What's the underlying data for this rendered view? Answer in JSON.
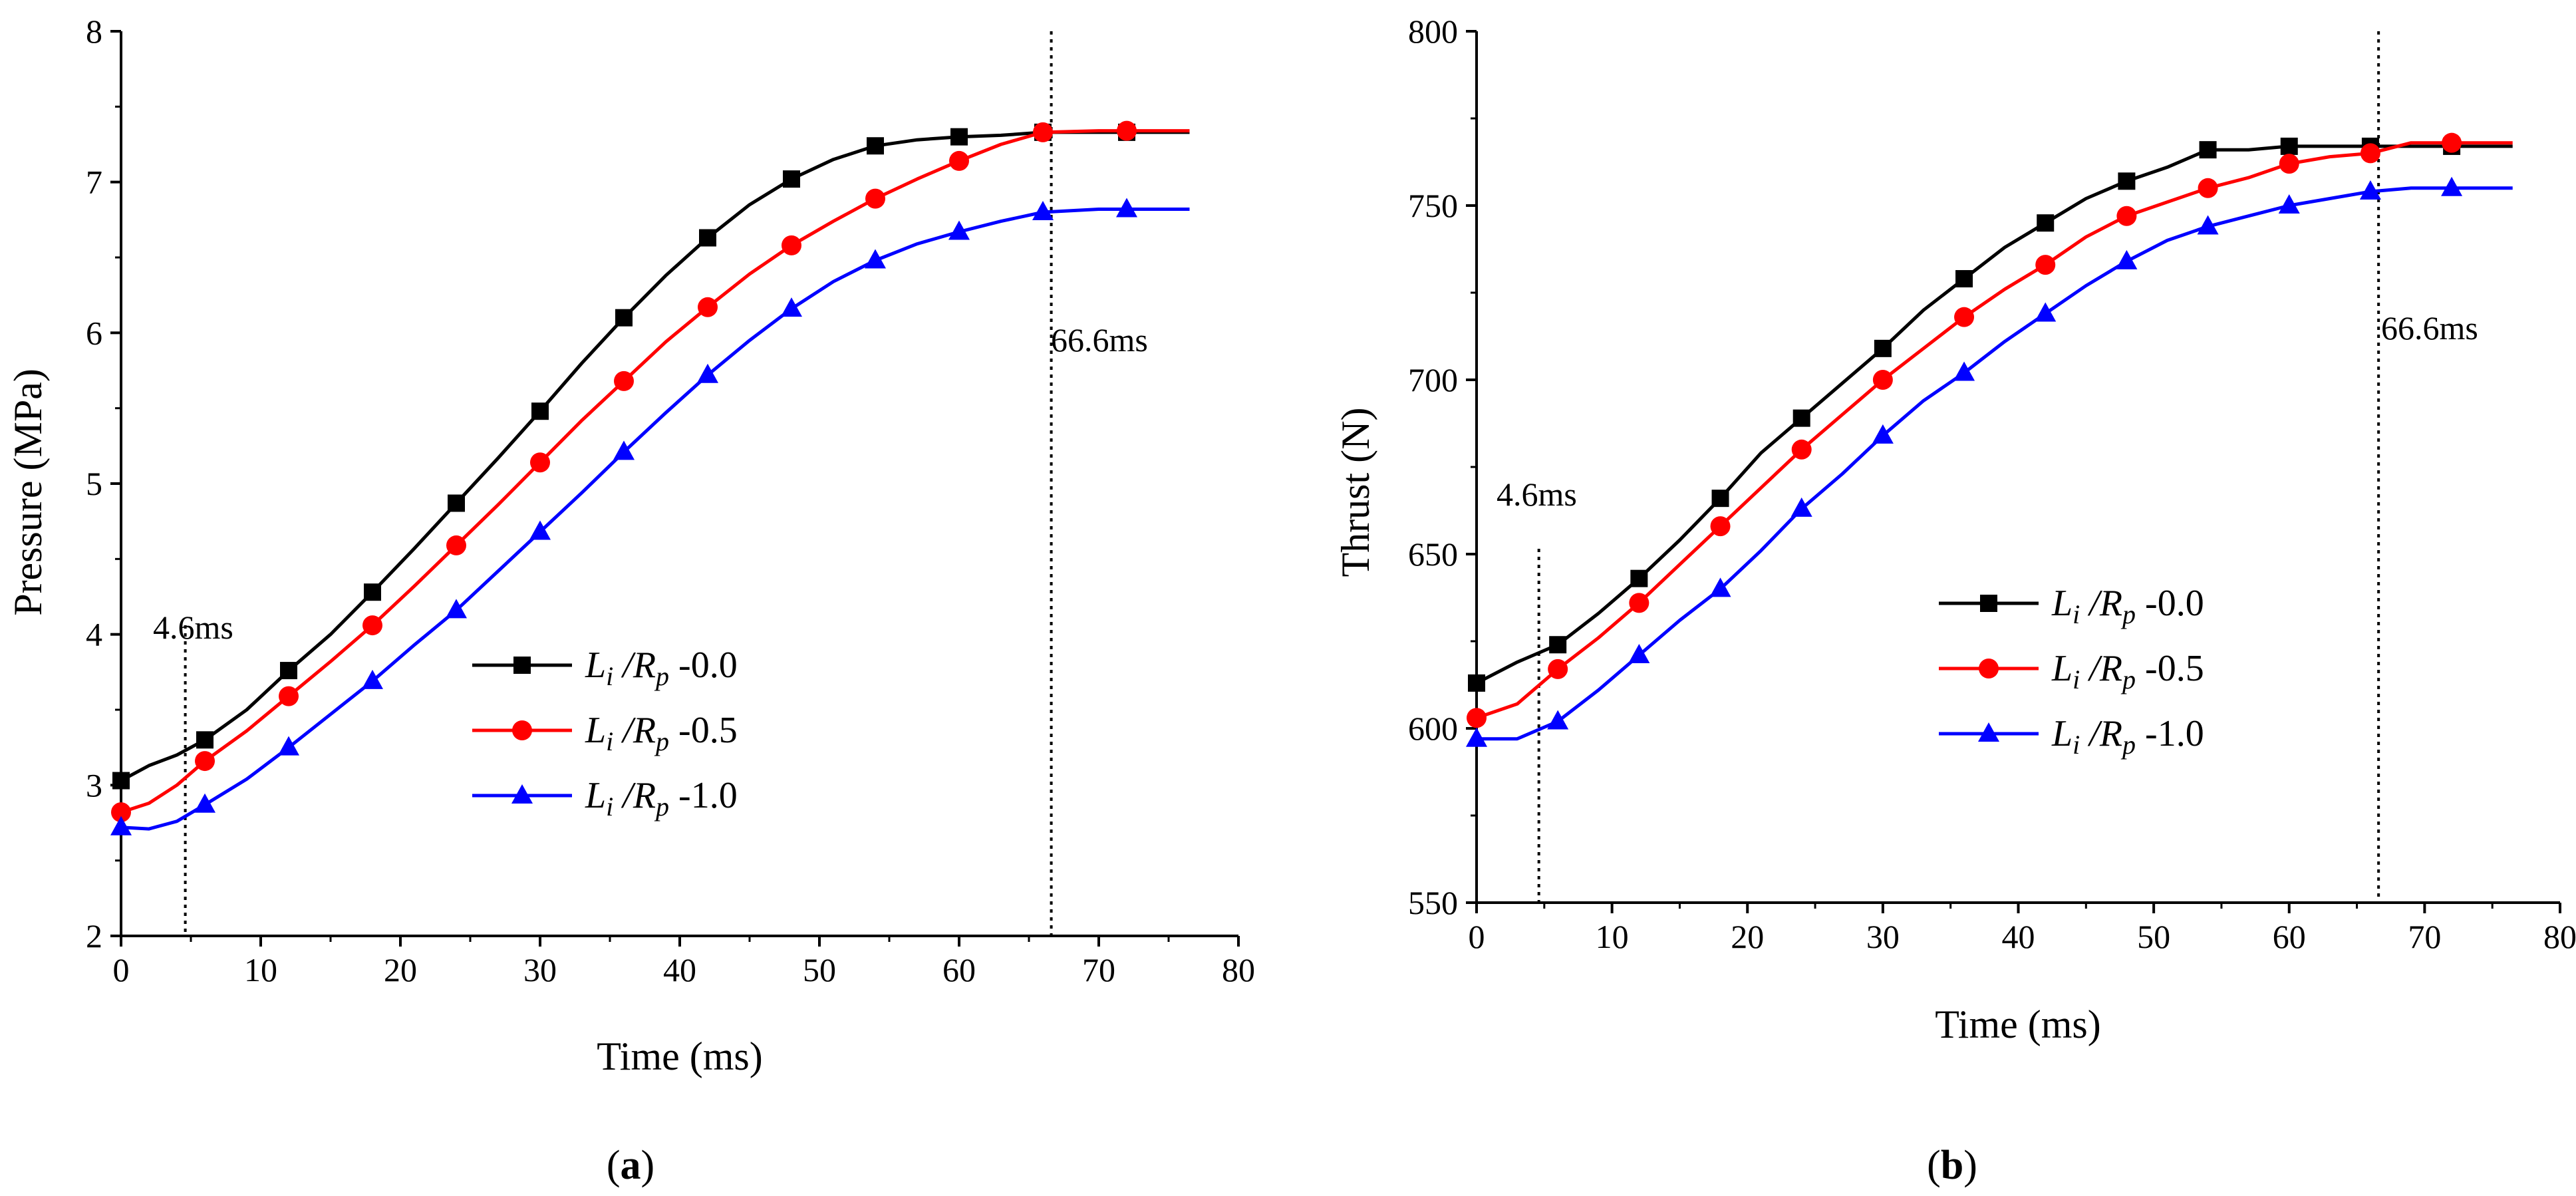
{
  "figure": {
    "panels": [
      {
        "panel_label": "a",
        "ylabel": "Pressure (MPa)",
        "xlabel": "Time (ms)"
      },
      {
        "panel_label": "b",
        "ylabel": "Thrust (N)",
        "xlabel": "Time (ms)"
      }
    ]
  },
  "chart_data": [
    {
      "type": "line",
      "title": "",
      "xlabel": "Time (ms)",
      "ylabel": "Pressure (MPa)",
      "xlim": [
        0,
        80
      ],
      "ylim": [
        2,
        8
      ],
      "xticks": [
        0,
        10,
        20,
        30,
        40,
        50,
        60,
        70,
        80
      ],
      "yticks": [
        2,
        3,
        4,
        5,
        6,
        7,
        8
      ],
      "grid": false,
      "legend_position": "lower-right-middle",
      "annotations": [
        {
          "label": "4.6ms",
          "x": 4.6
        },
        {
          "label": "66.6ms",
          "x": 66.6
        }
      ],
      "series": [
        {
          "name": "L_i / R_p -0.0",
          "legend_prefix": "L",
          "legend_sub1": "i",
          "legend_mid": " /R",
          "legend_sub2": "p",
          "legend_suffix": " -0.0",
          "color": "#000000",
          "marker": "square",
          "x": [
            0,
            2,
            4,
            6,
            9,
            12,
            15,
            18,
            21,
            24,
            27,
            30,
            33,
            36,
            39,
            42,
            45,
            48,
            51,
            54,
            57,
            60,
            63,
            66,
            70,
            72,
            76.5
          ],
          "y": [
            3.03,
            3.13,
            3.2,
            3.3,
            3.5,
            3.76,
            4.0,
            4.28,
            4.57,
            4.87,
            5.17,
            5.48,
            5.8,
            6.1,
            6.38,
            6.63,
            6.85,
            7.02,
            7.15,
            7.24,
            7.28,
            7.3,
            7.31,
            7.33,
            7.33,
            7.33,
            7.33
          ],
          "markers_x": [
            0,
            6,
            12,
            18,
            24,
            30,
            36,
            42,
            48,
            54,
            60,
            66,
            72
          ],
          "markers_y": [
            3.03,
            3.3,
            3.76,
            4.28,
            4.87,
            5.48,
            6.1,
            6.63,
            7.02,
            7.24,
            7.3,
            7.33,
            7.33
          ]
        },
        {
          "name": "L_i / R_p -0.5",
          "legend_prefix": "L",
          "legend_sub1": "i",
          "legend_mid": " /R",
          "legend_sub2": "p",
          "legend_suffix": " -0.5",
          "color": "#ff0000",
          "marker": "circle",
          "x": [
            0,
            2,
            4,
            6,
            9,
            12,
            15,
            18,
            21,
            24,
            27,
            30,
            33,
            36,
            39,
            42,
            45,
            48,
            51,
            54,
            57,
            60,
            63,
            66,
            70,
            72,
            76.5
          ],
          "y": [
            2.82,
            2.88,
            3.0,
            3.16,
            3.36,
            3.59,
            3.82,
            4.06,
            4.32,
            4.59,
            4.86,
            5.14,
            5.42,
            5.68,
            5.94,
            6.17,
            6.39,
            6.58,
            6.74,
            6.89,
            7.02,
            7.14,
            7.25,
            7.33,
            7.34,
            7.34,
            7.34
          ],
          "markers_x": [
            0,
            6,
            12,
            18,
            24,
            30,
            36,
            42,
            48,
            54,
            60,
            66,
            72
          ],
          "markers_y": [
            2.82,
            3.16,
            3.59,
            4.06,
            4.59,
            5.14,
            5.68,
            6.17,
            6.58,
            6.89,
            7.14,
            7.33,
            7.34
          ]
        },
        {
          "name": "L_i / R_p -1.0",
          "legend_prefix": "L",
          "legend_sub1": "i",
          "legend_mid": " /R",
          "legend_sub2": "p",
          "legend_suffix": " -1.0",
          "color": "#0000ff",
          "marker": "triangle",
          "x": [
            0,
            2,
            4,
            6,
            9,
            12,
            15,
            18,
            21,
            24,
            27,
            30,
            33,
            36,
            39,
            42,
            45,
            48,
            51,
            54,
            57,
            60,
            63,
            66,
            70,
            72,
            76.5
          ],
          "y": [
            2.72,
            2.71,
            2.76,
            2.87,
            3.04,
            3.25,
            3.47,
            3.69,
            3.93,
            4.16,
            4.42,
            4.68,
            4.94,
            5.21,
            5.47,
            5.72,
            5.95,
            6.16,
            6.34,
            6.48,
            6.59,
            6.67,
            6.74,
            6.8,
            6.82,
            6.82,
            6.82
          ],
          "markers_x": [
            0,
            6,
            12,
            18,
            24,
            30,
            36,
            42,
            48,
            54,
            60,
            66,
            72
          ],
          "markers_y": [
            2.72,
            2.87,
            3.25,
            3.69,
            4.16,
            4.68,
            5.21,
            5.72,
            6.16,
            6.48,
            6.67,
            6.8,
            6.82
          ]
        }
      ]
    },
    {
      "type": "line",
      "title": "",
      "xlabel": "Time (ms)",
      "ylabel": "Thrust (N)",
      "xlim": [
        0,
        80
      ],
      "ylim": [
        550,
        800
      ],
      "xticks": [
        0,
        10,
        20,
        30,
        40,
        50,
        60,
        70,
        80
      ],
      "yticks": [
        550,
        600,
        650,
        700,
        750,
        800
      ],
      "grid": false,
      "legend_position": "right-middle",
      "annotations": [
        {
          "label": "4.6ms",
          "x": 4.6
        },
        {
          "label": "66.6ms",
          "x": 66.6
        }
      ],
      "series": [
        {
          "name": "L_i / R_p -0.0",
          "legend_prefix": "L",
          "legend_sub1": "i",
          "legend_mid": " /R",
          "legend_sub2": "p",
          "legend_suffix": " -0.0",
          "color": "#000000",
          "marker": "square",
          "x": [
            0,
            3,
            6,
            9,
            12,
            15,
            18,
            21,
            24,
            27,
            30,
            33,
            36,
            39,
            42,
            45,
            48,
            51,
            54,
            57,
            60,
            63,
            66,
            69,
            72,
            76.5
          ],
          "y": [
            613,
            619,
            624,
            633,
            643,
            654,
            666,
            679,
            689,
            699,
            709,
            720,
            729,
            738,
            745,
            752,
            757,
            761,
            766,
            766,
            767,
            767,
            767,
            767,
            767,
            767
          ],
          "markers_x": [
            0,
            6,
            12,
            18,
            24,
            30,
            36,
            42,
            48,
            54,
            60,
            66,
            72
          ],
          "markers_y": [
            613,
            624,
            643,
            666,
            689,
            709,
            729,
            745,
            757,
            766,
            767,
            767,
            767
          ]
        },
        {
          "name": "L_i / R_p -0.5",
          "legend_prefix": "L",
          "legend_sub1": "i",
          "legend_mid": " /R",
          "legend_sub2": "p",
          "legend_suffix": " -0.5",
          "color": "#ff0000",
          "marker": "circle",
          "x": [
            0,
            3,
            6,
            9,
            12,
            15,
            18,
            21,
            24,
            27,
            30,
            33,
            36,
            39,
            42,
            45,
            48,
            51,
            54,
            57,
            60,
            63,
            66,
            69,
            72,
            76.5
          ],
          "y": [
            603,
            607,
            617,
            626,
            636,
            647,
            658,
            669,
            680,
            690,
            700,
            709,
            718,
            726,
            733,
            741,
            747,
            751,
            755,
            758,
            762,
            764,
            765,
            768,
            768,
            768
          ],
          "markers_x": [
            0,
            6,
            12,
            18,
            24,
            30,
            36,
            42,
            48,
            54,
            60,
            66,
            72
          ],
          "markers_y": [
            603,
            617,
            636,
            658,
            680,
            700,
            718,
            733,
            747,
            755,
            762,
            765,
            768
          ]
        },
        {
          "name": "L_i / R_p -1.0",
          "legend_prefix": "L",
          "legend_sub1": "i",
          "legend_mid": " /R",
          "legend_sub2": "p",
          "legend_suffix": " -1.0",
          "color": "#0000ff",
          "marker": "triangle",
          "x": [
            0,
            3,
            6,
            9,
            12,
            15,
            18,
            21,
            24,
            27,
            30,
            33,
            36,
            39,
            42,
            45,
            48,
            51,
            54,
            57,
            60,
            63,
            66,
            69,
            72,
            76.5
          ],
          "y": [
            597,
            597,
            602,
            611,
            621,
            631,
            640,
            651,
            663,
            673,
            684,
            694,
            702,
            711,
            719,
            727,
            734,
            740,
            744,
            747,
            750,
            752,
            754,
            755,
            755,
            755
          ],
          "markers_x": [
            0,
            6,
            12,
            18,
            24,
            30,
            36,
            42,
            48,
            54,
            60,
            66,
            72
          ],
          "markers_y": [
            597,
            602,
            621,
            640,
            663,
            684,
            702,
            719,
            734,
            744,
            750,
            754,
            755
          ]
        }
      ]
    }
  ]
}
